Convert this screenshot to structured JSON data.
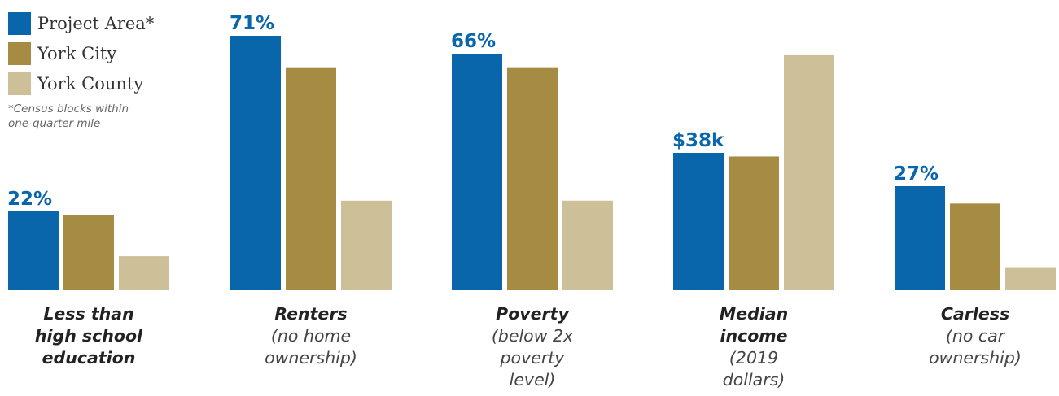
{
  "colors": {
    "project_area": "#0a66ab",
    "york_city": "#a68c42",
    "york_county": "#cdbf97",
    "value_label": "#0a66ab",
    "category_label": "#222222",
    "category_sublabel": "#444444"
  },
  "legend": {
    "items": [
      {
        "label": "Project Area*",
        "color_key": "project_area"
      },
      {
        "label": "York City",
        "color_key": "york_city"
      },
      {
        "label": "York County",
        "color_key": "york_county"
      }
    ],
    "footnote": "*Census blocks within\n one-quarter mile"
  },
  "chart_data": {
    "type": "bar",
    "title": "",
    "xlabel": "",
    "ylabel": "",
    "grid": false,
    "legend_position": "top-left",
    "series": [
      {
        "name": "Project Area*"
      },
      {
        "name": "York City"
      },
      {
        "name": "York County"
      }
    ],
    "groups": [
      {
        "label_lines": [
          "Less than",
          "high school",
          "education"
        ],
        "label_bold_lines": 3,
        "unit": "percent",
        "label_value": "22%",
        "values": [
          22,
          21,
          9.5
        ]
      },
      {
        "label_lines": [
          "Renters",
          "(no home",
          "ownership)"
        ],
        "label_bold_lines": 1,
        "unit": "percent",
        "label_value": "71%",
        "values": [
          71,
          62,
          25
        ]
      },
      {
        "label_lines": [
          "Poverty",
          "(below 2x",
          "poverty",
          "level)"
        ],
        "label_bold_lines": 1,
        "unit": "percent",
        "label_value": "66%",
        "values": [
          66,
          62,
          25
        ]
      },
      {
        "label_lines": [
          "Median",
          "income",
          "(2019",
          "dollars)"
        ],
        "label_bold_lines": 2,
        "unit": "thousand dollars",
        "label_value": "$38k",
        "values": [
          38,
          37,
          65
        ]
      },
      {
        "label_lines": [
          "Carless",
          "(no car",
          "ownership)"
        ],
        "label_bold_lines": 1,
        "unit": "percent",
        "label_value": "27%",
        "values": [
          27,
          22.5,
          6
        ]
      }
    ]
  }
}
